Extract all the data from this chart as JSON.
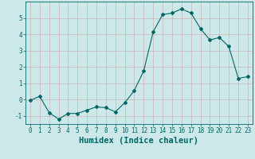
{
  "x": [
    0,
    1,
    2,
    3,
    4,
    5,
    6,
    7,
    8,
    9,
    10,
    11,
    12,
    13,
    14,
    15,
    16,
    17,
    18,
    19,
    20,
    21,
    22,
    23
  ],
  "y": [
    -0.05,
    0.2,
    -0.8,
    -1.2,
    -0.85,
    -0.85,
    -0.65,
    -0.45,
    -0.5,
    -0.75,
    -0.2,
    0.55,
    1.75,
    4.15,
    5.2,
    5.3,
    5.55,
    5.3,
    4.35,
    3.65,
    3.8,
    3.25,
    1.3,
    1.4
  ],
  "xlabel": "Humidex (Indice chaleur)",
  "xlim": [
    -0.5,
    23.5
  ],
  "ylim": [
    -1.5,
    6.0
  ],
  "yticks": [
    -1,
    0,
    1,
    2,
    3,
    4,
    5
  ],
  "xticks": [
    0,
    1,
    2,
    3,
    4,
    5,
    6,
    7,
    8,
    9,
    10,
    11,
    12,
    13,
    14,
    15,
    16,
    17,
    18,
    19,
    20,
    21,
    22,
    23
  ],
  "line_color": "#006666",
  "marker": "D",
  "marker_size": 2.0,
  "bg_color": "#cce8e8",
  "grid_color": "#b0d0d0",
  "tick_label_fontsize": 5.5,
  "xlabel_fontsize": 7.5
}
